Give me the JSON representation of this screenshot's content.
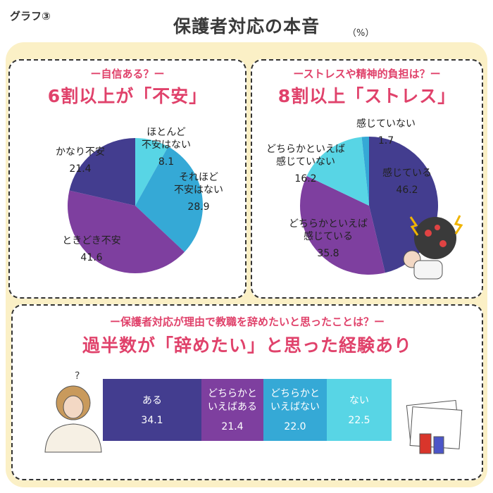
{
  "header": {
    "graph_label": "グラフ③",
    "title": "保護者対応の本音",
    "unit": "（%）"
  },
  "colors": {
    "dark_navy": "#433d8f",
    "purple": "#7e3f9f",
    "blue": "#35a9d6",
    "light_cyan": "#58d5e5",
    "pink": "#e0426b",
    "cream": "#fbf0c6"
  },
  "left": {
    "subtitle": "ー自信ある？ー",
    "headline": "6割以上が「不安」"
  },
  "right": {
    "subtitle": "ーストレスや精神的負担は？ー",
    "headline": "8割以上「ストレス」"
  },
  "bottom": {
    "subtitle": "ー保護者対応が理由で教職を辞めたいと思ったことは？ー",
    "headline": "過半数が「辞めたい」と思った経験あり"
  },
  "chart_data": [
    {
      "type": "pie",
      "title": "6割以上が「不安」",
      "slices": [
        {
          "label": "ほとんど\n不安はない",
          "value": 8.1,
          "color": "#58d5e5"
        },
        {
          "label": "それほど\n不安はない",
          "value": 28.9,
          "color": "#35a9d6"
        },
        {
          "label": "ときどき不安",
          "value": 41.6,
          "color": "#7e3f9f"
        },
        {
          "label": "かなり不安",
          "value": 21.4,
          "color": "#433d8f"
        }
      ]
    },
    {
      "type": "pie",
      "title": "8割以上「ストレス」",
      "slices": [
        {
          "label": "感じている",
          "value": 46.2,
          "color": "#433d8f"
        },
        {
          "label": "どちらかといえば\n感じている",
          "value": 35.8,
          "color": "#7e3f9f"
        },
        {
          "label": "どちらかといえば\n感じていない",
          "value": 16.2,
          "color": "#58d5e5"
        },
        {
          "label": "感じていない",
          "value": 1.7,
          "color": "#35a9d6"
        }
      ]
    },
    {
      "type": "bar",
      "orientation": "stacked-horizontal",
      "title": "過半数が「辞めたい」と思った経験あり",
      "categories": [
        "ある",
        "どちらかと\nいえばある",
        "どちらかと\nいえばない",
        "ない"
      ],
      "values": [
        34.1,
        21.4,
        22.0,
        22.5
      ],
      "colors": [
        "#433d8f",
        "#7e3f9f",
        "#35a9d6",
        "#58d5e5"
      ]
    }
  ]
}
